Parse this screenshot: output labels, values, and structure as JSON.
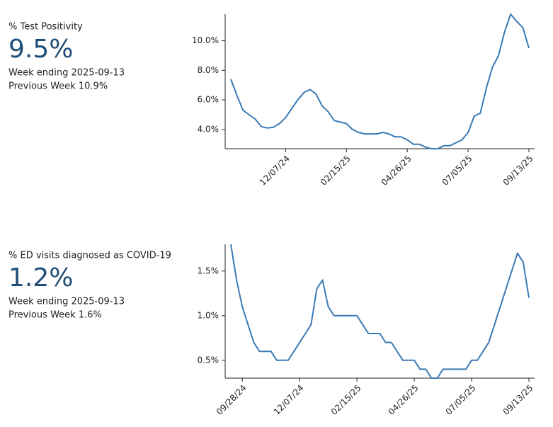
{
  "chart_data": [
    {
      "type": "line",
      "title": "% Test Positivity",
      "headline": "9.5%",
      "week_ending": "Week ending 2025-09-13",
      "previous_week": "Previous Week 10.9%",
      "color": "#3a7ab5",
      "x": [
        "10/05/24",
        "10/12/24",
        "10/19/24",
        "10/26/24",
        "11/02/24",
        "11/09/24",
        "11/16/24",
        "11/23/24",
        "11/30/24",
        "12/07/24",
        "12/14/24",
        "12/21/24",
        "12/28/24",
        "01/04/25",
        "01/11/25",
        "01/18/25",
        "01/25/25",
        "02/01/25",
        "02/08/25",
        "02/15/25",
        "02/22/25",
        "03/01/25",
        "03/08/25",
        "03/15/25",
        "03/22/25",
        "03/29/25",
        "04/05/25",
        "04/12/25",
        "04/19/25",
        "04/26/25",
        "05/03/25",
        "05/10/25",
        "05/17/25",
        "05/24/25",
        "05/31/25",
        "06/07/25",
        "06/14/25",
        "06/21/25",
        "06/28/25",
        "07/05/25",
        "07/12/25",
        "07/19/25",
        "07/26/25",
        "08/02/25",
        "08/09/25",
        "08/16/25",
        "08/23/25",
        "08/30/25",
        "09/06/25",
        "09/13/25"
      ],
      "values": [
        7.4,
        6.3,
        5.3,
        5.0,
        4.7,
        4.2,
        4.1,
        4.15,
        4.4,
        4.8,
        5.4,
        6.0,
        6.5,
        6.7,
        6.4,
        5.6,
        5.2,
        4.6,
        4.5,
        4.4,
        4.0,
        3.8,
        3.7,
        3.7,
        3.7,
        3.8,
        3.7,
        3.5,
        3.5,
        3.3,
        3.0,
        3.0,
        2.8,
        2.7,
        2.7,
        2.9,
        2.9,
        3.1,
        3.3,
        3.8,
        4.9,
        5.1,
        6.8,
        8.2,
        9.0,
        10.6,
        11.8,
        11.3,
        10.9,
        9.5
      ],
      "ylim": [
        2.7,
        11.8
      ],
      "yticks": [
        {
          "value": 4,
          "label": "4.0%"
        },
        {
          "value": 6,
          "label": "6.0%"
        },
        {
          "value": 8,
          "label": "8.0%"
        },
        {
          "value": 10,
          "label": "10.0%"
        }
      ],
      "xticks": [
        "12/07/24",
        "02/15/25",
        "04/26/25",
        "07/05/25",
        "09/13/25"
      ]
    },
    {
      "type": "line",
      "title": "% ED visits diagnosed as COVID-19",
      "headline": "1.2%",
      "week_ending": "Week ending 2025-09-13",
      "previous_week": "Previous Week 1.6%",
      "color": "#3a7ab5",
      "x": [
        "09/14/24",
        "09/21/24",
        "09/28/24",
        "10/05/24",
        "10/12/24",
        "10/19/24",
        "10/26/24",
        "11/02/24",
        "11/09/24",
        "11/16/24",
        "11/23/24",
        "11/30/24",
        "12/07/24",
        "12/14/24",
        "12/21/24",
        "12/28/24",
        "01/04/25",
        "01/11/25",
        "01/18/25",
        "01/25/25",
        "02/01/25",
        "02/08/25",
        "02/15/25",
        "02/22/25",
        "03/01/25",
        "03/08/25",
        "03/15/25",
        "03/22/25",
        "03/29/25",
        "04/05/25",
        "04/12/25",
        "04/19/25",
        "04/26/25",
        "05/03/25",
        "05/10/25",
        "05/17/25",
        "05/24/25",
        "05/31/25",
        "06/07/25",
        "06/14/25",
        "06/21/25",
        "06/28/25",
        "07/05/25",
        "07/12/25",
        "07/19/25",
        "07/26/25",
        "08/02/25",
        "08/09/25",
        "08/16/25",
        "08/23/25",
        "08/30/25",
        "09/06/25",
        "09/13/25"
      ],
      "values": [
        1.8,
        1.4,
        1.1,
        0.9,
        0.7,
        0.6,
        0.6,
        0.6,
        0.5,
        0.5,
        0.5,
        0.6,
        0.7,
        0.8,
        0.9,
        1.3,
        1.4,
        1.1,
        1.0,
        1.0,
        1.0,
        1.0,
        1.0,
        0.9,
        0.8,
        0.8,
        0.8,
        0.7,
        0.7,
        0.6,
        0.5,
        0.5,
        0.5,
        0.4,
        0.4,
        0.3,
        0.3,
        0.4,
        0.4,
        0.4,
        0.4,
        0.4,
        0.5,
        0.5,
        0.6,
        0.7,
        0.9,
        1.1,
        1.3,
        1.5,
        1.7,
        1.6,
        1.2
      ],
      "ylim": [
        0.3,
        1.8
      ],
      "yticks": [
        {
          "value": 0.5,
          "label": "0.5%"
        },
        {
          "value": 1.0,
          "label": "1.0%"
        },
        {
          "value": 1.5,
          "label": "1.5%"
        }
      ],
      "xticks": [
        "09/28/24",
        "12/07/24",
        "02/15/25",
        "04/26/25",
        "07/05/25",
        "09/13/25"
      ]
    }
  ]
}
